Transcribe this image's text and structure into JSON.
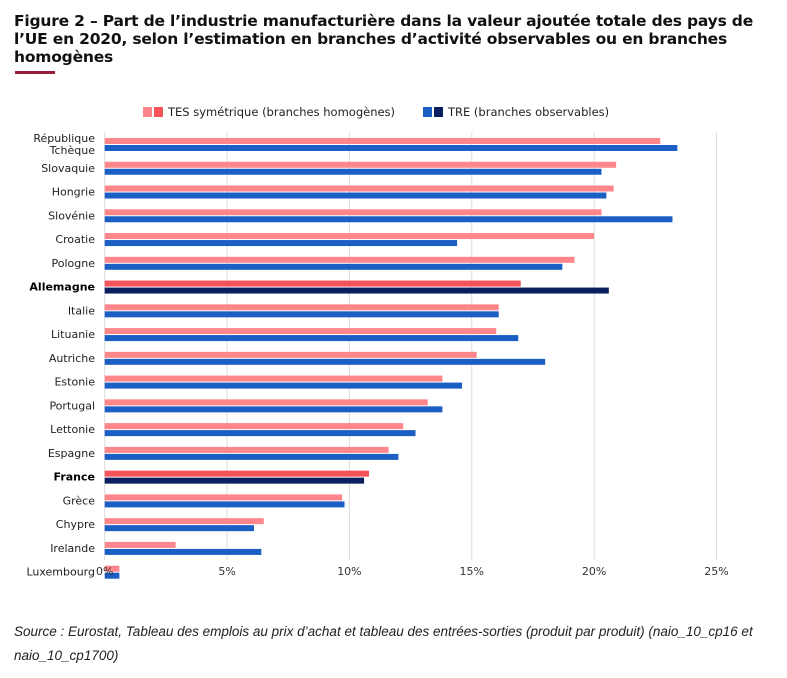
{
  "title": "Figure 2 – Part de l’industrie manufacturière dans la valeur ajoutée totale des pays de l’UE en 2020, selon l’estimation en branches d’activité observables ou en branches homogènes",
  "source": "Source : Eurostat, Tableau des emplois au prix d’achat et tableau des entrées-sorties (produit par produit) (naio_10_cp16 et naio_10_cp1700)",
  "chart_data": {
    "type": "bar",
    "orientation": "horizontal",
    "categories": [
      "République Tchèque",
      "Slovaquie",
      "Hongrie",
      "Slovénie",
      "Croatie",
      "Pologne",
      "Allemagne",
      "Italie",
      "Lituanie",
      "Autriche",
      "Estonie",
      "Portugal",
      "Lettonie",
      "Espagne",
      "France",
      "Grèce",
      "Chypre",
      "Irelande",
      "Luxembourg"
    ],
    "highlighted": [
      "Allemagne",
      "France"
    ],
    "series": [
      {
        "name": "TES symétrique (branches homogènes)",
        "color": "#ff868b",
        "highlight_color": "#f5525a",
        "values": [
          22.7,
          20.9,
          20.8,
          20.3,
          20.0,
          19.2,
          17.0,
          16.1,
          16.0,
          15.2,
          13.8,
          13.2,
          12.2,
          11.6,
          10.8,
          9.7,
          6.5,
          2.9,
          0.6
        ]
      },
      {
        "name": "TRE (branches observables)",
        "color": "#1b5ec4",
        "highlight_color": "#0b1f5e",
        "values": [
          23.4,
          20.3,
          20.5,
          23.2,
          14.4,
          18.7,
          20.6,
          16.1,
          16.9,
          18.0,
          14.6,
          13.8,
          12.7,
          12.0,
          10.6,
          9.8,
          6.1,
          6.4,
          0.6
        ]
      }
    ],
    "xlim": [
      0,
      25
    ],
    "xticks": [
      "0%",
      "5%",
      "10%",
      "15%",
      "20%",
      "25%"
    ],
    "xtick_values": [
      0,
      5,
      10,
      15,
      20,
      25
    ],
    "grid": true,
    "legend": "top"
  }
}
